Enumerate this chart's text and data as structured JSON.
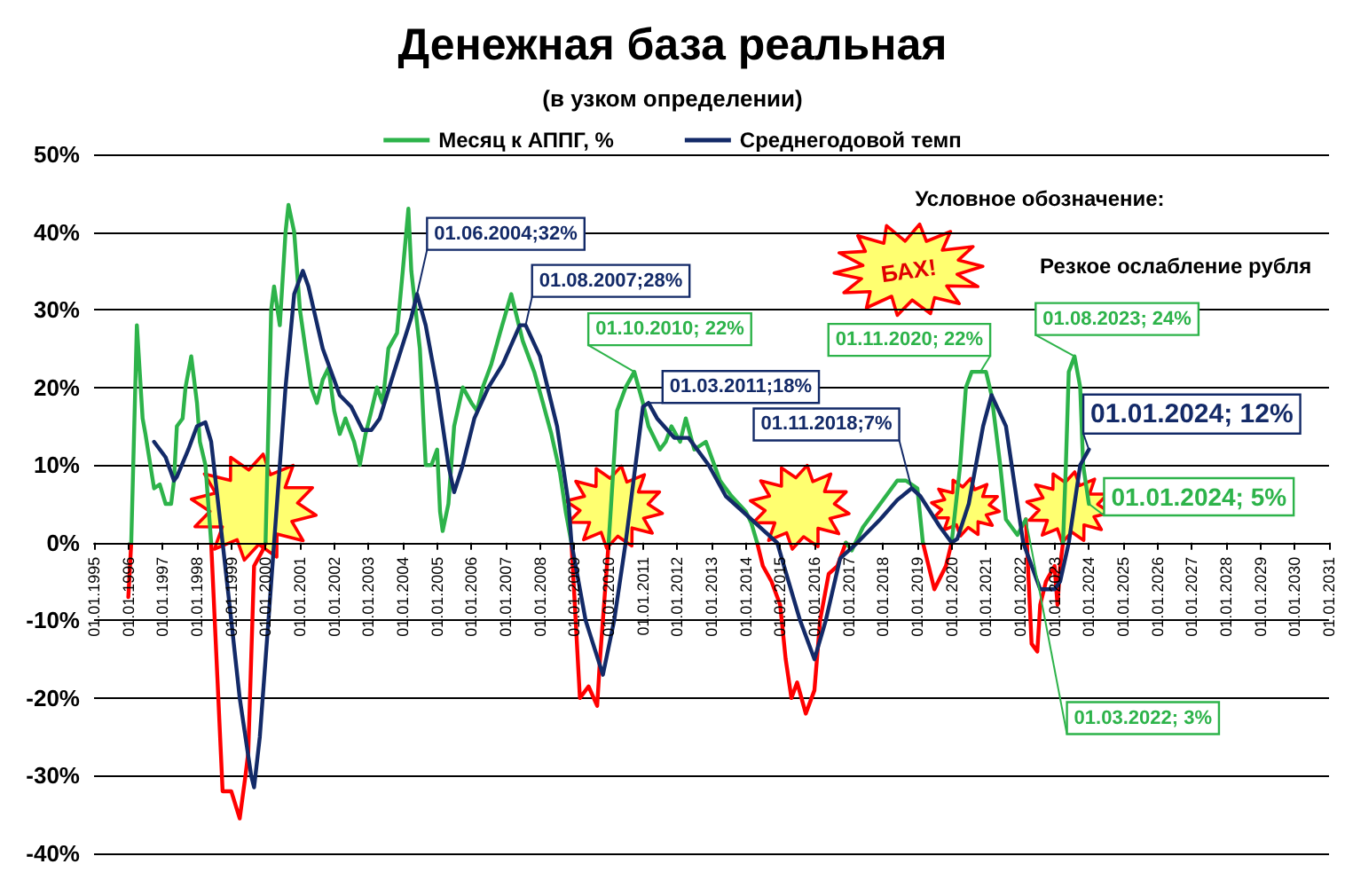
{
  "chart_data": {
    "type": "line",
    "title": "Денежная база реальная",
    "subtitle": "(в узком определении)",
    "legend": "top",
    "grid": "y",
    "marker": "none",
    "line_style": "solid",
    "xlim": [
      "1995-01",
      "2031-01"
    ],
    "xticks": [
      {
        "value": "1995-01",
        "label": "01.01.1995"
      },
      {
        "value": "1996-01",
        "label": "01.01.1996"
      },
      {
        "value": "1997-01",
        "label": "01.01.1997"
      },
      {
        "value": "1998-01",
        "label": "01.01.1998"
      },
      {
        "value": "1999-01",
        "label": "01.01.1999"
      },
      {
        "value": "2000-01",
        "label": "01.01.2000"
      },
      {
        "value": "2001-01",
        "label": "01.01.2001"
      },
      {
        "value": "2002-01",
        "label": "01.01.2002"
      },
      {
        "value": "2003-01",
        "label": "01.01.2003"
      },
      {
        "value": "2004-01",
        "label": "01.01.2004"
      },
      {
        "value": "2005-01",
        "label": "01.01.2005"
      },
      {
        "value": "2006-01",
        "label": "01.01.2006"
      },
      {
        "value": "2007-01",
        "label": "01.01.2007"
      },
      {
        "value": "2008-01",
        "label": "01.01.2008"
      },
      {
        "value": "2009-01",
        "label": "01.01.2009"
      },
      {
        "value": "2010-01",
        "label": "01.01.2010"
      },
      {
        "value": "2011-01",
        "label": "01.01.2011"
      },
      {
        "value": "2012-01",
        "label": "01.01.2012"
      },
      {
        "value": "2013-01",
        "label": "01.01.2013"
      },
      {
        "value": "2014-01",
        "label": "01.01.2014"
      },
      {
        "value": "2015-01",
        "label": "01.01.2015"
      },
      {
        "value": "2016-01",
        "label": "01.01.2016"
      },
      {
        "value": "2017-01",
        "label": "01.01.2017"
      },
      {
        "value": "2018-01",
        "label": "01.01.2018"
      },
      {
        "value": "2019-01",
        "label": "01.01.2019"
      },
      {
        "value": "2020-01",
        "label": "01.01.2020"
      },
      {
        "value": "2021-01",
        "label": "01.01.2021"
      },
      {
        "value": "2022-01",
        "label": "01.01.2022"
      },
      {
        "value": "2023-01",
        "label": "01.01.2023"
      },
      {
        "value": "2024-01",
        "label": "01.01.2024"
      },
      {
        "value": "2025-01",
        "label": "01.01.2025"
      },
      {
        "value": "2026-01",
        "label": "01.01.2026"
      },
      {
        "value": "2027-01",
        "label": "01.01.2027"
      },
      {
        "value": "2028-01",
        "label": "01.01.2028"
      },
      {
        "value": "2029-01",
        "label": "01.01.2029"
      },
      {
        "value": "2030-01",
        "label": "01.01.2030"
      },
      {
        "value": "2031-01",
        "label": "01.01.2031"
      }
    ],
    "ylim": [
      -40,
      50
    ],
    "yticks": [
      {
        "value": -40,
        "label": "-40%"
      },
      {
        "value": -30,
        "label": "-30%"
      },
      {
        "value": -20,
        "label": "-20%"
      },
      {
        "value": -10,
        "label": "-10%"
      },
      {
        "value": 0,
        "label": "0%"
      },
      {
        "value": 10,
        "label": "10%"
      },
      {
        "value": 20,
        "label": "20%"
      },
      {
        "value": 30,
        "label": "30%"
      },
      {
        "value": 40,
        "label": "40%"
      },
      {
        "value": 50,
        "label": "50%"
      }
    ],
    "series": [
      {
        "name": "Месяц к АППГ, %",
        "color": "#2db34a",
        "x": [
          "1996-02",
          "1996-04",
          "1996-06",
          "1996-07",
          "1996-10",
          "1996-12",
          "1997-02",
          "1997-04",
          "1997-05",
          "1997-06",
          "1997-08",
          "1997-09",
          "1997-11",
          "1998-01",
          "1998-02",
          "1998-04",
          "1998-06",
          "1998-07",
          "2000-01",
          "2000-03",
          "2000-04",
          "2000-06",
          "2000-08",
          "2000-09",
          "2000-11",
          "2001-01",
          "2001-03",
          "2001-05",
          "2001-07",
          "2001-09",
          "2001-11",
          "2002-01",
          "2002-03",
          "2002-05",
          "2002-08",
          "2002-10",
          "2002-12",
          "2003-02",
          "2003-04",
          "2003-06",
          "2003-08",
          "2003-11",
          "2004-01",
          "2004-03",
          "2004-04",
          "2004-07",
          "2004-09",
          "2004-11",
          "2005-01",
          "2005-02",
          "2005-03",
          "2005-05",
          "2005-07",
          "2005-10",
          "2006-01",
          "2006-03",
          "2006-05",
          "2006-08",
          "2006-11",
          "2007-03",
          "2007-05",
          "2007-07",
          "2007-11",
          "2008-02",
          "2008-05",
          "2008-08",
          "2008-10",
          "2008-12",
          "2009-01",
          "2010-01",
          "2010-04",
          "2010-07",
          "2010-10",
          "2011-01",
          "2011-03",
          "2011-07",
          "2011-09",
          "2011-11",
          "2012-02",
          "2012-04",
          "2012-07",
          "2012-11",
          "2013-04",
          "2013-08",
          "2014-01",
          "2014-03",
          "2014-05",
          "2014-06",
          "2016-12",
          "2017-02",
          "2017-06",
          "2017-12",
          "2018-06",
          "2018-09",
          "2019-01",
          "2019-03",
          "2019-04",
          "2020-01",
          "2020-04",
          "2020-06",
          "2020-08",
          "2020-11",
          "2021-01",
          "2021-03",
          "2021-06",
          "2021-08",
          "2021-10",
          "2021-12",
          "2022-03",
          "2022-04",
          "2023-04",
          "2023-05",
          "2023-06",
          "2023-08",
          "2023-10",
          "2023-11",
          "2024-01"
        ],
        "values": [
          0,
          28,
          16,
          14,
          7,
          7.5,
          5,
          5,
          8,
          15,
          16,
          20,
          24,
          18,
          13,
          10,
          0,
          null,
          0,
          30,
          33,
          28,
          40,
          43.5,
          40,
          30,
          25,
          20,
          18,
          21,
          22.5,
          17,
          14,
          16,
          13,
          10,
          14,
          17,
          20,
          18,
          25,
          27,
          35,
          43,
          35,
          25,
          10,
          10,
          12,
          4,
          1.5,
          5,
          15,
          20,
          18,
          17,
          20,
          23,
          27,
          32,
          29,
          26,
          22,
          18,
          14,
          9,
          4,
          0,
          null,
          0,
          17,
          20,
          22,
          18,
          15,
          12,
          13,
          15,
          13,
          16,
          12,
          13,
          8,
          6,
          4,
          2.5,
          0,
          null,
          0,
          -1,
          2,
          5,
          8,
          8,
          7,
          0,
          null,
          0,
          10,
          20,
          22,
          22,
          22,
          19,
          10,
          3,
          2,
          1,
          3,
          null,
          0,
          10,
          22,
          24,
          20,
          10,
          5
        ]
      },
      {
        "color": "#ff0000",
        "x": [
          "1996-01",
          "1996-02",
          "1996-03",
          "1998-06",
          "1998-10",
          "1999-01",
          "1999-04",
          "1999-06",
          "1999-07",
          "1999-09",
          "1999-12",
          "2000-01",
          "2000-02",
          "2008-12",
          "2009-03",
          "2009-06",
          "2009-09",
          "2009-10",
          "2010-01",
          "2010-02",
          "2014-05",
          "2014-07",
          "2014-10",
          "2015-01",
          "2015-03",
          "2015-05",
          "2015-07",
          "2015-10",
          "2016-01",
          "2016-03",
          "2016-06",
          "2016-09",
          "2016-12",
          "2017-01",
          "2019-03",
          "2019-05",
          "2019-07",
          "2019-11",
          "2020-01",
          "2020-02",
          "2022-03",
          "2022-05",
          "2022-07",
          "2022-08",
          "2022-10",
          "2023-01",
          "2023-02",
          "2023-03",
          "2023-04"
        ],
        "values": [
          -7,
          0,
          null,
          0,
          -32,
          -32,
          -35.5,
          -30,
          -27,
          -3,
          -1,
          0,
          null,
          0,
          -20,
          -18.5,
          -21,
          -15,
          0,
          null,
          0,
          -3,
          -5,
          -8,
          -15,
          -20,
          -18,
          -22,
          -19,
          -10,
          -4,
          -3,
          0,
          null,
          0,
          -3,
          -6,
          -3,
          0,
          null,
          3,
          -13,
          -14,
          -8,
          -5,
          -3,
          -8,
          -3,
          0
        ]
      },
      {
        "name": "Среднегодовой темп",
        "color": "#132a68",
        "x": [
          "1996-10",
          "1997-02",
          "1997-05",
          "1997-06",
          "1997-10",
          "1998-01",
          "1998-04",
          "1998-06",
          "1998-10",
          "1999-01",
          "1999-04",
          "1999-08",
          "1999-09",
          "1999-11",
          "2000-02",
          "2000-04",
          "2000-08",
          "2000-11",
          "2001-02",
          "2001-04",
          "2001-09",
          "2002-03",
          "2002-07",
          "2002-11",
          "2003-02",
          "2003-05",
          "2003-10",
          "2004-04",
          "2004-06",
          "2004-09",
          "2005-01",
          "2005-05",
          "2005-07",
          "2005-10",
          "2006-02",
          "2006-07",
          "2006-12",
          "2007-06",
          "2007-08",
          "2008-01",
          "2008-07",
          "2008-11",
          "2008-12",
          "2009-05",
          "2009-11",
          "2010-03",
          "2010-07",
          "2011-01",
          "2011-03",
          "2011-06",
          "2011-12",
          "2012-05",
          "2012-12",
          "2013-06",
          "2013-12",
          "2014-06",
          "2014-12",
          "2015-04",
          "2015-08",
          "2016-01",
          "2016-05",
          "2016-10",
          "2017-04",
          "2017-12",
          "2018-06",
          "2018-11",
          "2019-02",
          "2019-09",
          "2020-01",
          "2020-03",
          "2020-07",
          "2020-12",
          "2021-03",
          "2021-08",
          "2021-12",
          "2022-02",
          "2022-08",
          "2023-01",
          "2023-03",
          "2023-06",
          "2023-10",
          "2024-01"
        ],
        "values": [
          13,
          11,
          8,
          8.5,
          12,
          15,
          15.5,
          13,
          0,
          -10,
          -20,
          -30,
          -31.5,
          -25,
          -10,
          0,
          20,
          32,
          35,
          33,
          25,
          19,
          17.5,
          14.5,
          14.5,
          16,
          22,
          29,
          32,
          28,
          20,
          10,
          6.5,
          10,
          16,
          20,
          23,
          28,
          28,
          24,
          15,
          5,
          0,
          -10,
          -17,
          -10,
          0,
          17.5,
          18,
          16,
          13.5,
          13.5,
          10,
          6,
          4,
          2,
          0,
          -5,
          -10,
          -15,
          -10,
          -2,
          0,
          3,
          5.5,
          7,
          6,
          2,
          0,
          0.5,
          5,
          15,
          19,
          15,
          5,
          0,
          -6,
          -6,
          -5,
          0,
          10,
          12
        ]
      }
    ],
    "annotations": [
      "Условное обозначение:",
      "БАХ!",
      "Резкое ослабление рубля",
      {
        "text": "01.06.2004;32%",
        "x": "2004-06",
        "y": 32
      },
      {
        "text": "01.08.2007;28%",
        "x": "2007-08",
        "y": 28
      },
      {
        "text": "01.10.2010; 22%",
        "x": "2010-10",
        "y": 22
      },
      {
        "text": "01.03.2011;18%",
        "x": "2011-03",
        "y": 18
      },
      {
        "text": "01.11.2018;7%",
        "x": "2018-11",
        "y": 7
      },
      {
        "text": "01.11.2020; 22%",
        "x": "2020-11",
        "y": 22
      },
      {
        "text": "01.03.2022; 3%",
        "x": "2022-03",
        "y": 3
      },
      {
        "text": "01.08.2023; 24%",
        "x": "2023-08",
        "y": 24
      },
      {
        "text": "01.01.2024; 12%",
        "x": "2024-01",
        "y": 12
      },
      {
        "text": "01.01.2024; 5%",
        "x": "2024-01",
        "y": 5
      }
    ]
  }
}
